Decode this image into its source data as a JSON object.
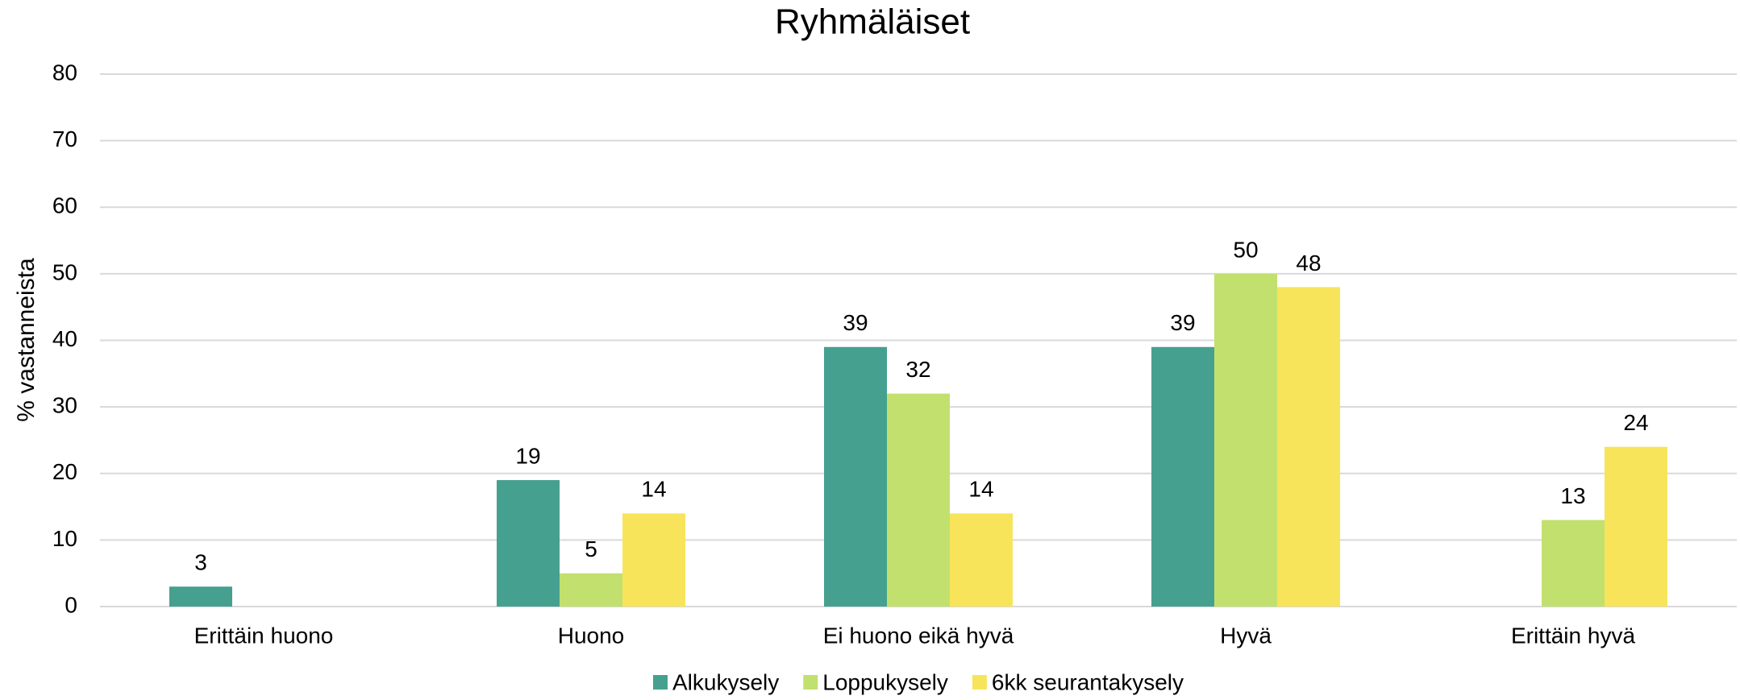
{
  "chart_data": {
    "type": "bar",
    "title": "Ryhmäläiset",
    "y_label": "% vastanneista",
    "categories": [
      "Erittäin huono",
      "Huono",
      "Ei huono eikä hyvä",
      "Hyvä",
      "Erittäin hyvä"
    ],
    "series": [
      {
        "name": "Alkukysely",
        "color": "#46a08f",
        "values": [
          3,
          19,
          39,
          39,
          null
        ]
      },
      {
        "name": "Loppukysely",
        "color": "#c2e06e",
        "values": [
          null,
          5,
          32,
          50,
          13
        ]
      },
      {
        "name": "6kk seurantakysely",
        "color": "#f7e45a",
        "values": [
          null,
          14,
          14,
          48,
          24
        ]
      }
    ],
    "ylim": [
      0,
      80
    ],
    "yticks": [
      0,
      10,
      20,
      30,
      40,
      50,
      60,
      70,
      80
    ],
    "grid": true,
    "legend": "bottom"
  }
}
